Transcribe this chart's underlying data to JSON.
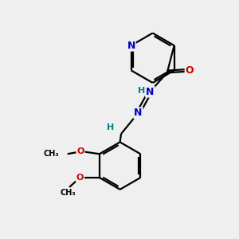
{
  "background_color": "#efefef",
  "atom_colors": {
    "N": "#0000cc",
    "O": "#cc0000",
    "C": "#000000",
    "H": "#008080"
  },
  "bond_color": "#000000",
  "figsize": [
    3.0,
    3.0
  ],
  "dpi": 100
}
